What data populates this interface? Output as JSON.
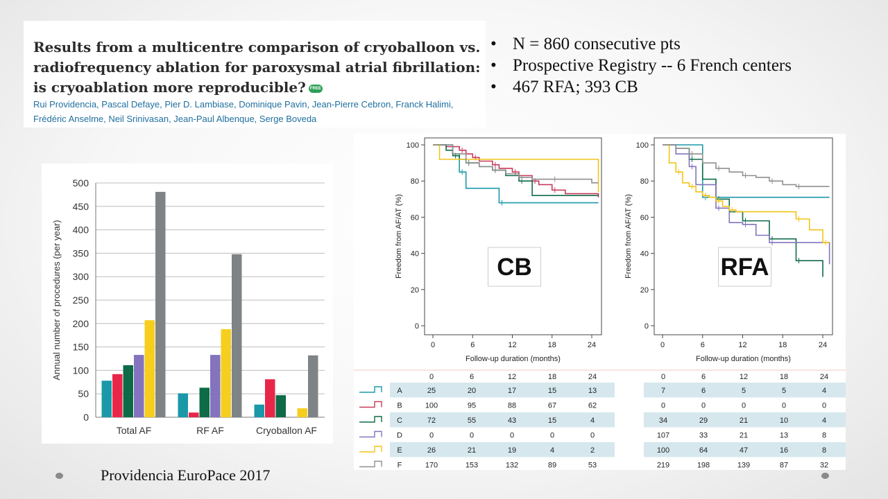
{
  "paper": {
    "title": "Results from a multicentre comparison of cryoballoon vs. radiofrequency ablation for paroxysmal atrial fibrillation: is cryoablation more reproducible?",
    "badge": "FREE",
    "authors_line1": "Rui Providencia, Pascal Defaye, Pier D. Lambiase, Dominique Pavin, Jean-Pierre Cebron, Franck Halimi,",
    "authors_line2": "Frédéric Anselme, Neil Srinivasan, Jean-Paul Albenque, Serge Boveda"
  },
  "bullets": [
    {
      "marker": "•",
      "text": "N = 860 consecutive pts"
    },
    {
      "marker": "•",
      "text": "Prospective Registry -- 6 French centers"
    },
    {
      "marker": "•",
      "text": "467 RFA; 393 CB"
    }
  ],
  "footer": {
    "caption": "Providencia EuroPace 2017"
  },
  "chart_data": [
    {
      "type": "bar",
      "ylabel": "Annual number of procedures (per year)",
      "ylim": [
        0,
        500
      ],
      "yticks": [
        0,
        50,
        100,
        150,
        200,
        250,
        300,
        350,
        400,
        450,
        500
      ],
      "categories": [
        "Total AF",
        "RF AF",
        "Cryoballon AF"
      ],
      "grid": true,
      "series": [
        {
          "color": "#1a98a8",
          "values": [
            78,
            51,
            27
          ]
        },
        {
          "color": "#e8264a",
          "values": [
            92,
            10,
            81
          ]
        },
        {
          "color": "#0d6b47",
          "values": [
            111,
            63,
            47
          ]
        },
        {
          "color": "#8473bd",
          "values": [
            133,
            133,
            0
          ]
        },
        {
          "color": "#f6ce1e",
          "values": [
            207,
            188,
            19
          ]
        },
        {
          "color": "#7e8385",
          "values": [
            481,
            348,
            132
          ]
        }
      ]
    },
    {
      "type": "line",
      "label": "CB",
      "xlabel": "Follow-up duration (months)",
      "ylabel": "Freedom from AF/AT (%)",
      "xlim": [
        0,
        25
      ],
      "ylim": [
        0,
        100
      ],
      "xticks": [
        0,
        6,
        12,
        18,
        24
      ],
      "yticks": [
        0,
        20,
        40,
        60,
        80,
        100
      ],
      "series": [
        {
          "name": "A",
          "color": "#1a98a8",
          "x": [
            0,
            3,
            4,
            5,
            10,
            25
          ],
          "y": [
            100,
            95,
            85,
            76,
            68,
            68
          ]
        },
        {
          "name": "B",
          "color": "#c73a5a",
          "x": [
            0,
            2,
            4,
            5,
            6,
            7,
            9,
            10,
            12,
            13,
            15,
            16,
            18,
            20,
            25
          ],
          "y": [
            100,
            99,
            97,
            95,
            93,
            91,
            89,
            87,
            85,
            83,
            80,
            78,
            75,
            73,
            71
          ]
        },
        {
          "name": "C",
          "color": "#0d6b47",
          "x": [
            0,
            2,
            3,
            4,
            5,
            7,
            9,
            11,
            13,
            15,
            25
          ],
          "y": [
            100,
            97,
            94,
            92,
            90,
            88,
            86,
            83,
            80,
            72,
            72
          ]
        },
        {
          "name": "E",
          "color": "#f2c417",
          "x": [
            0,
            1,
            25
          ],
          "y": [
            100,
            92,
            74
          ]
        },
        {
          "name": "F",
          "color": "#8f8f8f",
          "x": [
            0,
            3,
            5,
            7,
            9,
            11,
            13,
            15,
            18,
            24,
            25
          ],
          "y": [
            100,
            95,
            90,
            88,
            86,
            84,
            82,
            81,
            81,
            79,
            79
          ]
        }
      ]
    },
    {
      "type": "line",
      "label": "RFA",
      "xlabel": "Follow-up duration (months)",
      "ylabel": "Freedom from AF/AT (%)",
      "xlim": [
        0,
        25
      ],
      "ylim": [
        0,
        100
      ],
      "xticks": [
        0,
        6,
        12,
        18,
        24
      ],
      "yticks": [
        0,
        20,
        40,
        60,
        80,
        100
      ],
      "series": [
        {
          "name": "A",
          "color": "#1a98a8",
          "x": [
            0,
            5,
            6,
            25
          ],
          "y": [
            100,
            100,
            71,
            71
          ]
        },
        {
          "name": "C",
          "color": "#0d6b47",
          "x": [
            0,
            2,
            4,
            6,
            8,
            10,
            12,
            14,
            16,
            18,
            20,
            22,
            24
          ],
          "y": [
            100,
            98,
            92,
            81,
            70,
            63,
            58,
            58,
            48,
            48,
            36,
            36,
            27
          ]
        },
        {
          "name": "D",
          "color": "#8473bd",
          "x": [
            0,
            2,
            4,
            5,
            8,
            10,
            12,
            14,
            16,
            18,
            25
          ],
          "y": [
            100,
            95,
            88,
            78,
            65,
            57,
            56,
            50,
            46,
            46,
            34
          ]
        },
        {
          "name": "E",
          "color": "#f2c417",
          "x": [
            0,
            1,
            2,
            3,
            4,
            5,
            6,
            7,
            8,
            9,
            10,
            11,
            20,
            22,
            24,
            25
          ],
          "y": [
            100,
            90,
            85,
            79,
            77,
            74,
            72,
            71,
            69,
            66,
            64,
            63,
            59,
            53,
            46,
            46
          ]
        },
        {
          "name": "F",
          "color": "#8f8f8f",
          "x": [
            0,
            2,
            4,
            6,
            8,
            10,
            12,
            14,
            16,
            18,
            20,
            25
          ],
          "y": [
            100,
            98,
            95,
            90,
            87,
            85,
            83,
            82,
            80,
            78,
            77,
            77
          ]
        }
      ]
    },
    {
      "type": "table",
      "header": [
        "0",
        "6",
        "12",
        "18",
        "24"
      ],
      "rows": [
        {
          "label": "A",
          "color": "#1a98a8",
          "cb": [
            "25",
            "20",
            "17",
            "15",
            "13"
          ],
          "rfa": [
            "7",
            "6",
            "5",
            "5",
            "4"
          ]
        },
        {
          "label": "B",
          "color": "#c73a5a",
          "cb": [
            "100",
            "95",
            "88",
            "67",
            "62"
          ],
          "rfa": [
            "0",
            "0",
            "0",
            "0",
            "0"
          ]
        },
        {
          "label": "C",
          "color": "#0d6b47",
          "cb": [
            "72",
            "55",
            "43",
            "15",
            "4"
          ],
          "rfa": [
            "34",
            "29",
            "21",
            "10",
            "4"
          ]
        },
        {
          "label": "D",
          "color": "#8473bd",
          "cb": [
            "0",
            "0",
            "0",
            "0",
            "0"
          ],
          "rfa": [
            "107",
            "33",
            "21",
            "13",
            "8"
          ]
        },
        {
          "label": "E",
          "color": "#f2c417",
          "cb": [
            "26",
            "21",
            "19",
            "4",
            "2"
          ],
          "rfa": [
            "100",
            "64",
            "47",
            "16",
            "8"
          ]
        },
        {
          "label": "F",
          "color": "#8f8f8f",
          "cb": [
            "170",
            "153",
            "132",
            "89",
            "53"
          ],
          "rfa": [
            "219",
            "198",
            "139",
            "87",
            "32"
          ]
        }
      ]
    }
  ]
}
